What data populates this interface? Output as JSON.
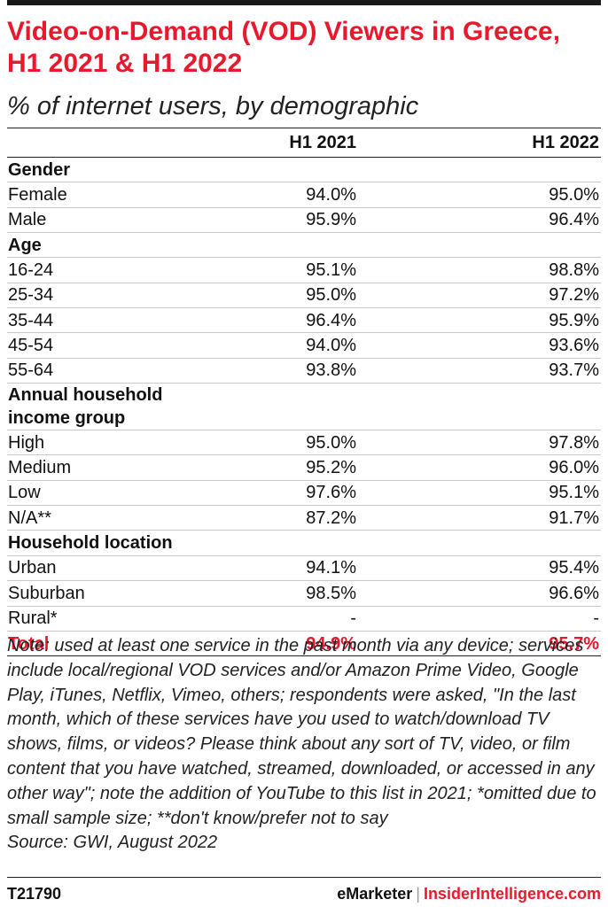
{
  "title": "Video-on-Demand (VOD) Viewers in Greece, H1 2021 & H1 2022",
  "subtitle": "% of internet users, by demographic",
  "chart_data": {
    "type": "table",
    "columns": [
      "",
      "H1 2021",
      "H1 2022"
    ],
    "rows": [
      {
        "kind": "group",
        "label": "Gender"
      },
      {
        "kind": "row",
        "label": "Female",
        "v2021": "94.0%",
        "v2022": "95.0%"
      },
      {
        "kind": "row",
        "label": "Male",
        "v2021": "95.9%",
        "v2022": "96.4%"
      },
      {
        "kind": "group",
        "label": "Age"
      },
      {
        "kind": "row",
        "label": "16-24",
        "v2021": "95.1%",
        "v2022": "98.8%"
      },
      {
        "kind": "row",
        "label": "25-34",
        "v2021": "95.0%",
        "v2022": "97.2%"
      },
      {
        "kind": "row",
        "label": "35-44",
        "v2021": "96.4%",
        "v2022": "95.9%"
      },
      {
        "kind": "row",
        "label": "45-54",
        "v2021": "94.0%",
        "v2022": "93.6%"
      },
      {
        "kind": "row",
        "label": "55-64",
        "v2021": "93.8%",
        "v2022": "93.7%"
      },
      {
        "kind": "group",
        "label": "Annual household income group"
      },
      {
        "kind": "row",
        "label": "High",
        "v2021": "95.0%",
        "v2022": "97.8%"
      },
      {
        "kind": "row",
        "label": "Medium",
        "v2021": "95.2%",
        "v2022": "96.0%"
      },
      {
        "kind": "row",
        "label": "Low",
        "v2021": "97.6%",
        "v2022": "95.1%"
      },
      {
        "kind": "row",
        "label": "N/A**",
        "v2021": "87.2%",
        "v2022": "91.7%"
      },
      {
        "kind": "group",
        "label": "Household location"
      },
      {
        "kind": "row",
        "label": "Urban",
        "v2021": "94.1%",
        "v2022": "95.4%"
      },
      {
        "kind": "row",
        "label": "Suburban",
        "v2021": "98.5%",
        "v2022": "96.6%"
      },
      {
        "kind": "row",
        "label": "Rural*",
        "v2021": "-",
        "v2022": "-"
      },
      {
        "kind": "total",
        "label": "Total",
        "v2021": "94.9%",
        "v2022": "95.7%"
      }
    ]
  },
  "note": "Note: used at least one service in the past month via any device; services include local/regional VOD services and/or Amazon Prime Video, Google Play, iTunes, Netflix, Vimeo, others; respondents were asked, \"In the last month, which of these services have you used to watch/download TV shows, films, or videos? Please think about any sort of TV, video, or film content that you have watched, streamed, downloaded, or accessed in any other way\"; note the addition of YouTube to this list in 2021; *omitted due to small sample size; **don't know/prefer not to say",
  "source": "Source: GWI, August 2022",
  "footer": {
    "code": "T21790",
    "brand_left": "eMarketer",
    "separator": "|",
    "brand_right": "InsiderIntelligence.com"
  },
  "colors": {
    "accent": "#e8192c",
    "text": "#111111",
    "rule": "#c8c8c8"
  }
}
